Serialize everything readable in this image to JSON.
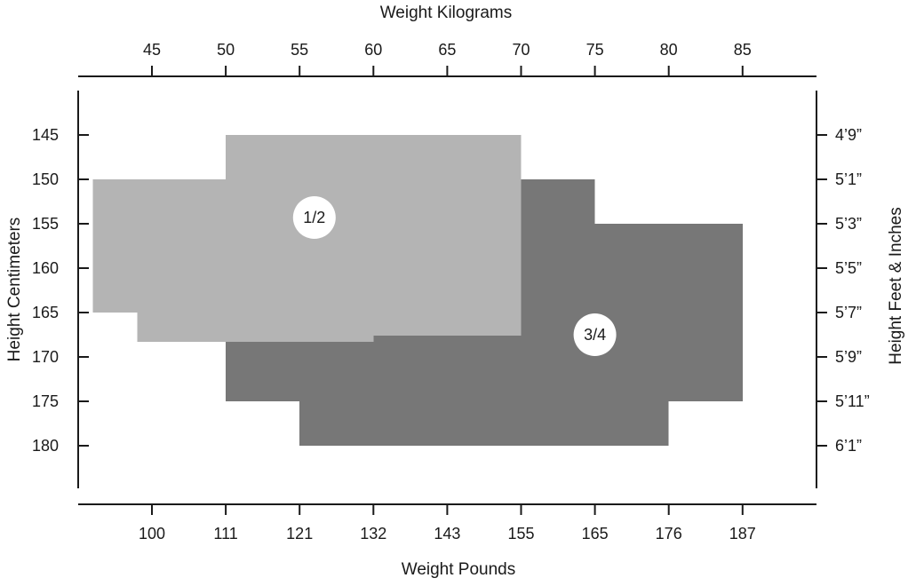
{
  "chart_data": {
    "type": "area",
    "top_axis": {
      "title": "Weight Kilograms",
      "ticks": [
        45,
        50,
        55,
        60,
        65,
        70,
        75,
        80,
        85
      ]
    },
    "bottom_axis": {
      "title": "Weight Pounds",
      "ticks": [
        {
          "kg": 45,
          "label": "100"
        },
        {
          "kg": 50,
          "label": "111"
        },
        {
          "kg": 55,
          "label": "121"
        },
        {
          "kg": 60,
          "label": "132"
        },
        {
          "kg": 65,
          "label": "143"
        },
        {
          "kg": 70,
          "label": "155"
        },
        {
          "kg": 75,
          "label": "165"
        },
        {
          "kg": 80,
          "label": "176"
        },
        {
          "kg": 85,
          "label": "187"
        }
      ]
    },
    "left_axis": {
      "title": "Height Centimeters",
      "ticks": [
        145,
        150,
        155,
        160,
        165,
        170,
        175,
        180
      ]
    },
    "right_axis": {
      "title": "Height Feet & Inches",
      "ticks": [
        {
          "cm": 145,
          "label": "4’9”"
        },
        {
          "cm": 150,
          "label": "5’1”"
        },
        {
          "cm": 155,
          "label": "5’3”"
        },
        {
          "cm": 160,
          "label": "5’5”"
        },
        {
          "cm": 165,
          "label": "5’7”"
        },
        {
          "cm": 170,
          "label": "5’9”"
        },
        {
          "cm": 175,
          "label": "5’11”"
        },
        {
          "cm": 180,
          "label": "6’1”"
        }
      ]
    },
    "x_range_kg": [
      40,
      90
    ],
    "y_range_cm": [
      140,
      185
    ],
    "regions": [
      {
        "size": "3/4",
        "color": "#777777",
        "label_position": {
          "kg": 75,
          "cm": 167.5
        },
        "rects": [
          {
            "kg": [
              50,
              60
            ],
            "cm": [
              165,
              175
            ]
          },
          {
            "kg": [
              60,
              70
            ],
            "cm": [
              167.5,
              175
            ]
          },
          {
            "kg": [
              55,
              80
            ],
            "cm": [
              175,
              180
            ]
          },
          {
            "kg": [
              70,
              75
            ],
            "cm": [
              150,
              155
            ]
          },
          {
            "kg": [
              70,
              85
            ],
            "cm": [
              155,
              175
            ]
          }
        ]
      },
      {
        "size": "1/2",
        "color": "#b4b4b4",
        "label_position": {
          "kg": 56,
          "cm": 154.3
        },
        "rects": [
          {
            "kg": [
              41,
              50
            ],
            "cm": [
              150,
              165
            ]
          },
          {
            "kg": [
              44,
              60
            ],
            "cm": [
              165,
              168.3
            ]
          },
          {
            "kg": [
              50,
              70
            ],
            "cm": [
              145,
              165
            ]
          },
          {
            "kg": [
              50,
              60
            ],
            "cm": [
              165,
              168.3
            ]
          },
          {
            "kg": [
              60,
              70
            ],
            "cm": [
              165,
              167.6
            ]
          }
        ]
      }
    ]
  }
}
